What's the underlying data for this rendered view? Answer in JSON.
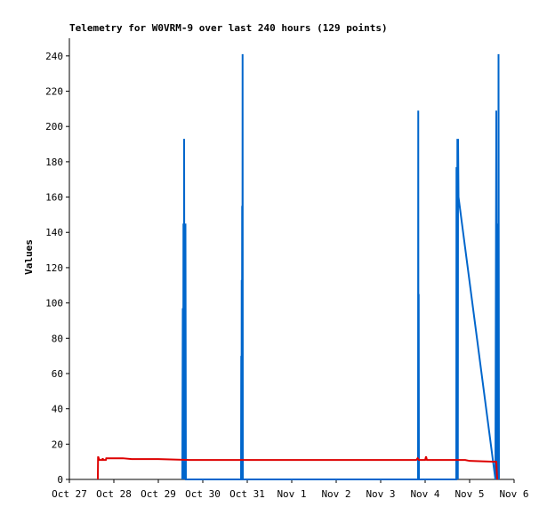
{
  "chart_data": {
    "type": "line",
    "title": "Telemetry for W0VRM-9 over last 240 hours (129 points)",
    "xlabel": "",
    "ylabel": "Values",
    "x_unit": "days",
    "xlim": [
      0,
      10
    ],
    "ylim": [
      0,
      250
    ],
    "x_ticks": [
      {
        "x": 0,
        "label": "Oct 27"
      },
      {
        "x": 1,
        "label": "Oct 28"
      },
      {
        "x": 2,
        "label": "Oct 29"
      },
      {
        "x": 3,
        "label": "Oct 30"
      },
      {
        "x": 4,
        "label": "Oct 31"
      },
      {
        "x": 5,
        "label": "Nov 1"
      },
      {
        "x": 6,
        "label": "Nov 2"
      },
      {
        "x": 7,
        "label": "Nov 3"
      },
      {
        "x": 8,
        "label": "Nov 4"
      },
      {
        "x": 9,
        "label": "Nov 5"
      },
      {
        "x": 10,
        "label": "Nov 6"
      }
    ],
    "y_ticks": [
      0,
      20,
      40,
      60,
      80,
      100,
      120,
      140,
      160,
      180,
      200,
      220,
      240
    ],
    "grid": false,
    "legend": "none",
    "series": [
      {
        "color": "#0066cc",
        "width": 2,
        "points": [
          [
            2.54,
            0
          ],
          [
            2.55,
            97
          ],
          [
            2.56,
            0
          ],
          [
            2.565,
            145
          ],
          [
            2.575,
            0
          ],
          [
            2.58,
            193
          ],
          [
            2.59,
            0
          ],
          [
            2.595,
            145
          ],
          [
            2.605,
            0
          ],
          [
            2.61,
            145
          ],
          [
            2.62,
            0
          ],
          [
            3.86,
            0
          ],
          [
            3.865,
            70
          ],
          [
            3.87,
            0
          ],
          [
            3.875,
            113
          ],
          [
            3.88,
            0
          ],
          [
            3.885,
            155
          ],
          [
            3.89,
            0
          ],
          [
            3.895,
            241
          ],
          [
            3.9,
            0
          ],
          [
            7.84,
            0
          ],
          [
            7.845,
            209
          ],
          [
            7.85,
            0
          ],
          [
            7.855,
            105
          ],
          [
            7.86,
            0
          ],
          [
            8.7,
            0
          ],
          [
            8.705,
            177
          ],
          [
            8.71,
            0
          ],
          [
            8.715,
            177
          ],
          [
            8.72,
            0
          ],
          [
            8.725,
            193
          ],
          [
            8.735,
            0
          ],
          [
            8.74,
            193
          ],
          [
            8.75,
            160
          ],
          [
            9.58,
            0
          ],
          [
            9.6,
            209
          ],
          [
            9.61,
            0
          ],
          [
            9.62,
            129
          ],
          [
            9.63,
            0
          ],
          [
            9.64,
            145
          ],
          [
            9.645,
            0
          ],
          [
            9.65,
            241
          ],
          [
            9.66,
            0
          ]
        ]
      },
      {
        "color": "#dd0000",
        "width": 2,
        "points": [
          [
            0.64,
            0
          ],
          [
            0.645,
            13
          ],
          [
            0.66,
            12
          ],
          [
            0.68,
            11
          ],
          [
            0.74,
            11
          ],
          [
            0.75,
            12
          ],
          [
            0.76,
            11
          ],
          [
            0.82,
            11
          ],
          [
            0.83,
            12
          ],
          [
            0.9,
            12
          ],
          [
            1.0,
            12
          ],
          [
            1.2,
            12
          ],
          [
            1.4,
            11.5
          ],
          [
            2.0,
            11.5
          ],
          [
            2.7,
            11
          ],
          [
            3.6,
            11
          ],
          [
            4.4,
            11
          ],
          [
            5.2,
            11
          ],
          [
            6.0,
            11
          ],
          [
            7.0,
            11
          ],
          [
            7.8,
            11
          ],
          [
            7.83,
            12
          ],
          [
            7.86,
            11
          ],
          [
            8.0,
            11
          ],
          [
            8.02,
            13
          ],
          [
            8.04,
            11
          ],
          [
            8.5,
            11
          ],
          [
            8.9,
            11
          ],
          [
            9.0,
            10.5
          ],
          [
            9.56,
            10
          ],
          [
            9.6,
            10
          ],
          [
            9.62,
            0
          ]
        ]
      }
    ]
  }
}
